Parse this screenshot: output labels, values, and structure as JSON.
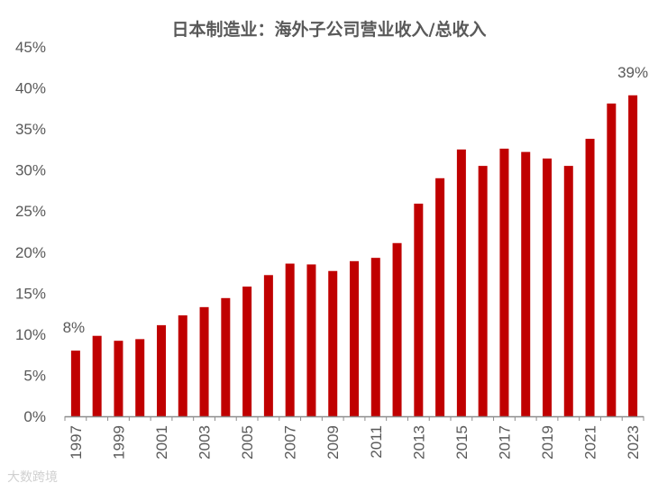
{
  "chart_data": {
    "type": "bar",
    "title": "日本制造业：海外子公司营业收入/总收入",
    "categories": [
      "1997",
      "1998",
      "1999",
      "2000",
      "2001",
      "2002",
      "2003",
      "2004",
      "2005",
      "2006",
      "2007",
      "2008",
      "2009",
      "2010",
      "2011",
      "2012",
      "2013",
      "2014",
      "2015",
      "2016",
      "2017",
      "2018",
      "2019",
      "2020",
      "2021",
      "2022",
      "2023"
    ],
    "x_tick_labels": [
      "1997",
      "1999",
      "2001",
      "2003",
      "2005",
      "2007",
      "2009",
      "2011",
      "2013",
      "2015",
      "2017",
      "2019",
      "2021",
      "2023"
    ],
    "values": [
      8.0,
      9.8,
      9.2,
      9.4,
      11.1,
      12.3,
      13.3,
      14.4,
      15.8,
      17.2,
      18.6,
      18.5,
      17.7,
      18.9,
      19.3,
      21.1,
      25.9,
      29.0,
      32.5,
      30.5,
      32.6,
      32.2,
      31.4,
      30.5,
      33.8,
      38.1,
      39.1
    ],
    "ylim": [
      0,
      45
    ],
    "y_ticks": [
      "0%",
      "5%",
      "10%",
      "15%",
      "20%",
      "25%",
      "30%",
      "35%",
      "40%",
      "45%"
    ],
    "data_labels": {
      "first": "8%",
      "last": "39%"
    },
    "bar_color": "#c00000",
    "grid": false,
    "legend": "none"
  },
  "watermark": "大数跨境"
}
